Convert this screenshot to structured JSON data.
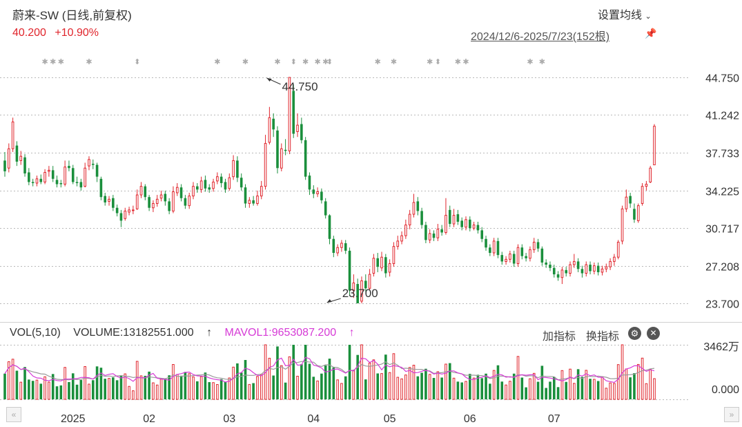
{
  "header": {
    "title": "蔚来-SW (日线,前复权)",
    "price": "40.200",
    "change": "+10.90%",
    "ma_setting": "设置均线",
    "range": "2024/12/6-2025/7/23(152根)"
  },
  "volume_panel": {
    "vol_label": "VOL(5,10)",
    "volume_text": "VOLUME:13182551.000",
    "volume_arrow": "↑",
    "mavol_text": "MAVOL1:9653087.200",
    "mavol_arrow": "↑",
    "add_indicator": "加指标",
    "swap_indicator": "换指标",
    "y_top": "3462万",
    "y_zero": "0.000"
  },
  "icons": {
    "ma_dropdown": "chevron-down-icon",
    "pin": "pin-icon",
    "settings": "gear-icon",
    "close": "close-icon",
    "nav_left": "double-chevron-left-icon",
    "nav_right": "double-chevron-right-icon"
  },
  "colors": {
    "up": "#e0242b",
    "down": "#1a8f3c",
    "mavol1": "#d63ad6",
    "mavol2": "#9a9a9a"
  },
  "chart_data": {
    "type": "candlestick",
    "price_ylim": [
      23.7,
      44.75
    ],
    "price_ticks": [
      "44.750",
      "41.242",
      "37.733",
      "34.225",
      "30.717",
      "27.208",
      "23.700"
    ],
    "x_month_labels": [
      {
        "label": "2025",
        "index": 17
      },
      {
        "label": "02",
        "index": 36
      },
      {
        "label": "03",
        "index": 56
      },
      {
        "label": "04",
        "index": 77
      },
      {
        "label": "05",
        "index": 96
      },
      {
        "label": "06",
        "index": 116
      },
      {
        "label": "07",
        "index": 137
      }
    ],
    "annotations": [
      {
        "label": "44.750",
        "index": 65,
        "value": 44.75
      },
      {
        "label": "23.700",
        "index": 80,
        "value": 23.7
      }
    ],
    "event_markers": [
      {
        "index": 10,
        "symbol": "✱"
      },
      {
        "index": 12,
        "symbol": "✱"
      },
      {
        "index": 14,
        "symbol": "✱"
      },
      {
        "index": 21,
        "symbol": "✱"
      },
      {
        "index": 33,
        "symbol": "⬍"
      },
      {
        "index": 53,
        "symbol": "✱"
      },
      {
        "index": 60,
        "symbol": "✱"
      },
      {
        "index": 68,
        "symbol": "✱"
      },
      {
        "index": 72,
        "symbol": "⬍"
      },
      {
        "index": 75,
        "symbol": "✱"
      },
      {
        "index": 78,
        "symbol": "✱"
      },
      {
        "index": 80,
        "symbol": "✱"
      },
      {
        "index": 81,
        "symbol": "⬍"
      },
      {
        "index": 93,
        "symbol": "✱"
      },
      {
        "index": 97,
        "symbol": "✱"
      },
      {
        "index": 106,
        "symbol": "✱"
      },
      {
        "index": 108,
        "symbol": "⬍"
      },
      {
        "index": 113,
        "symbol": "✱"
      },
      {
        "index": 115,
        "symbol": "✱"
      },
      {
        "index": 131,
        "symbol": "✱"
      },
      {
        "index": 134,
        "symbol": "✱"
      }
    ],
    "candles": [
      [
        37.0,
        36.0,
        37.8,
        35.5
      ],
      [
        36.3,
        38.1,
        38.6,
        35.9
      ],
      [
        38.1,
        40.6,
        41.0,
        37.8
      ],
      [
        38.4,
        36.9,
        38.8,
        36.5
      ],
      [
        37.0,
        37.4,
        37.9,
        36.6
      ],
      [
        37.3,
        35.8,
        37.6,
        35.5
      ],
      [
        35.9,
        35.0,
        36.3,
        34.7
      ],
      [
        35.0,
        34.9,
        35.3,
        34.6
      ],
      [
        34.9,
        35.3,
        35.6,
        34.6
      ],
      [
        35.3,
        35.0,
        35.7,
        34.8
      ],
      [
        35.0,
        35.9,
        36.2,
        34.8
      ],
      [
        36.0,
        36.1,
        36.5,
        35.5
      ],
      [
        36.1,
        35.3,
        36.5,
        35.0
      ],
      [
        35.2,
        34.8,
        35.6,
        34.5
      ],
      [
        34.9,
        34.8,
        35.2,
        34.5
      ],
      [
        34.8,
        36.4,
        37.0,
        34.6
      ],
      [
        36.5,
        36.3,
        37.0,
        36.0
      ],
      [
        36.3,
        35.0,
        36.6,
        34.8
      ],
      [
        35.0,
        34.9,
        35.5,
        34.6
      ],
      [
        35.0,
        34.5,
        35.3,
        34.2
      ],
      [
        34.6,
        36.3,
        36.8,
        34.5
      ],
      [
        36.5,
        37.1,
        37.4,
        36.1
      ],
      [
        36.7,
        36.6,
        37.1,
        36.2
      ],
      [
        36.6,
        35.5,
        36.8,
        35.0
      ],
      [
        35.3,
        33.6,
        35.5,
        33.3
      ],
      [
        33.7,
        33.1,
        34.0,
        32.8
      ],
      [
        33.2,
        33.4,
        33.7,
        32.8
      ],
      [
        33.5,
        32.6,
        33.8,
        32.3
      ],
      [
        32.6,
        32.1,
        32.9,
        31.8
      ],
      [
        32.1,
        31.4,
        32.4,
        30.8
      ],
      [
        31.6,
        32.3,
        32.6,
        31.4
      ],
      [
        32.2,
        32.4,
        32.7,
        31.9
      ],
      [
        32.4,
        32.4,
        32.8,
        32.0
      ],
      [
        32.5,
        33.8,
        34.3,
        32.4
      ],
      [
        33.8,
        34.6,
        35.0,
        33.5
      ],
      [
        34.6,
        33.6,
        34.8,
        33.3
      ],
      [
        33.6,
        32.6,
        33.8,
        32.3
      ],
      [
        32.6,
        33.0,
        33.3,
        32.2
      ],
      [
        33.0,
        33.4,
        33.8,
        32.7
      ],
      [
        33.5,
        33.8,
        34.2,
        33.2
      ],
      [
        33.9,
        33.2,
        34.2,
        32.8
      ],
      [
        33.2,
        32.3,
        33.5,
        32.0
      ],
      [
        32.3,
        34.1,
        34.6,
        32.1
      ],
      [
        34.0,
        34.5,
        34.9,
        33.7
      ],
      [
        34.5,
        33.5,
        34.8,
        33.2
      ],
      [
        33.5,
        32.8,
        33.8,
        32.5
      ],
      [
        32.8,
        33.7,
        34.0,
        32.5
      ],
      [
        33.7,
        34.6,
        35.0,
        33.4
      ],
      [
        34.6,
        34.3,
        34.9,
        34.0
      ],
      [
        34.3,
        35.1,
        35.5,
        34.0
      ],
      [
        35.2,
        34.4,
        35.6,
        34.1
      ],
      [
        34.5,
        34.3,
        34.8,
        34.0
      ],
      [
        34.4,
        35.0,
        35.3,
        34.1
      ],
      [
        35.1,
        35.5,
        35.9,
        34.8
      ],
      [
        35.5,
        34.9,
        35.8,
        34.5
      ],
      [
        35.0,
        34.3,
        35.3,
        34.0
      ],
      [
        34.4,
        35.4,
        35.8,
        34.2
      ],
      [
        35.5,
        37.0,
        37.5,
        35.2
      ],
      [
        37.0,
        35.4,
        37.4,
        35.0
      ],
      [
        35.4,
        34.5,
        35.8,
        34.2
      ],
      [
        34.5,
        33.0,
        34.8,
        32.6
      ],
      [
        33.0,
        33.3,
        33.6,
        32.6
      ],
      [
        33.3,
        33.0,
        33.7,
        32.8
      ],
      [
        33.0,
        33.7,
        34.2,
        32.8
      ],
      [
        33.7,
        34.6,
        35.1,
        33.4
      ],
      [
        34.6,
        38.6,
        39.4,
        34.3
      ],
      [
        38.7,
        41.0,
        42.0,
        38.5
      ],
      [
        40.9,
        39.9,
        41.4,
        39.2
      ],
      [
        39.8,
        36.3,
        40.2,
        35.8
      ],
      [
        36.3,
        38.1,
        38.6,
        36.0
      ],
      [
        38.0,
        37.9,
        39.0,
        37.5
      ],
      [
        37.9,
        44.75,
        44.75,
        37.6
      ],
      [
        43.5,
        39.5,
        44.1,
        39.1
      ],
      [
        39.7,
        40.3,
        41.4,
        39.2
      ],
      [
        40.4,
        38.9,
        41.0,
        38.6
      ],
      [
        38.9,
        35.5,
        39.2,
        35.2
      ],
      [
        35.6,
        34.3,
        35.9,
        33.8
      ],
      [
        34.3,
        33.9,
        34.7,
        33.5
      ],
      [
        33.9,
        34.1,
        34.5,
        33.6
      ],
      [
        34.1,
        33.3,
        34.4,
        33.0
      ],
      [
        33.2,
        31.9,
        33.5,
        31.6
      ],
      [
        31.9,
        29.7,
        32.0,
        29.2
      ],
      [
        29.7,
        28.4,
        30.0,
        28.0
      ],
      [
        28.4,
        28.9,
        29.2,
        28.1
      ],
      [
        28.9,
        29.3,
        29.6,
        28.5
      ],
      [
        29.3,
        28.6,
        29.6,
        28.3
      ],
      [
        28.6,
        24.9,
        28.9,
        24.4
      ],
      [
        24.9,
        25.6,
        26.4,
        24.2
      ],
      [
        25.5,
        23.7,
        26.0,
        23.7
      ],
      [
        23.9,
        25.8,
        26.2,
        23.7
      ],
      [
        25.8,
        25.1,
        26.4,
        24.8
      ],
      [
        25.1,
        26.4,
        26.9,
        24.9
      ],
      [
        26.5,
        27.9,
        28.3,
        26.2
      ],
      [
        27.9,
        27.1,
        28.4,
        26.6
      ],
      [
        27.0,
        28.0,
        28.5,
        26.7
      ],
      [
        28.0,
        26.5,
        28.3,
        26.1
      ],
      [
        26.6,
        27.4,
        27.8,
        26.2
      ],
      [
        27.4,
        29.0,
        29.4,
        27.1
      ],
      [
        29.0,
        29.5,
        30.0,
        28.7
      ],
      [
        29.5,
        30.0,
        30.4,
        29.2
      ],
      [
        30.0,
        31.0,
        31.5,
        29.7
      ],
      [
        31.0,
        32.0,
        32.4,
        30.6
      ],
      [
        32.0,
        33.1,
        33.9,
        31.7
      ],
      [
        33.2,
        32.3,
        33.6,
        31.9
      ],
      [
        32.3,
        31.0,
        32.6,
        30.7
      ],
      [
        31.0,
        29.6,
        31.3,
        29.3
      ],
      [
        29.6,
        30.2,
        30.6,
        29.3
      ],
      [
        30.2,
        29.8,
        30.5,
        29.5
      ],
      [
        29.8,
        30.6,
        31.1,
        29.5
      ],
      [
        30.6,
        30.3,
        31.0,
        30.0
      ],
      [
        30.3,
        31.9,
        33.5,
        30.1
      ],
      [
        32.4,
        31.1,
        32.8,
        30.8
      ],
      [
        31.1,
        31.9,
        32.5,
        30.8
      ],
      [
        32.0,
        31.3,
        32.4,
        31.0
      ],
      [
        31.4,
        30.8,
        31.7,
        30.5
      ],
      [
        30.8,
        31.5,
        31.8,
        30.5
      ],
      [
        31.5,
        30.7,
        31.8,
        30.4
      ],
      [
        30.7,
        31.0,
        31.3,
        30.5
      ],
      [
        31.0,
        30.5,
        31.3,
        30.2
      ],
      [
        30.5,
        29.7,
        30.8,
        29.4
      ],
      [
        29.7,
        28.9,
        30.0,
        28.6
      ],
      [
        28.9,
        28.4,
        29.2,
        28.1
      ],
      [
        28.4,
        29.5,
        29.8,
        28.1
      ],
      [
        29.5,
        28.2,
        29.8,
        27.9
      ],
      [
        28.2,
        27.6,
        28.5,
        27.3
      ],
      [
        27.6,
        27.8,
        28.1,
        27.3
      ],
      [
        27.8,
        28.3,
        28.6,
        27.5
      ],
      [
        28.3,
        27.4,
        28.6,
        27.1
      ],
      [
        27.4,
        28.9,
        29.2,
        27.1
      ],
      [
        28.9,
        28.1,
        29.2,
        27.8
      ],
      [
        28.1,
        27.9,
        28.4,
        27.6
      ],
      [
        27.9,
        28.7,
        29.0,
        27.6
      ],
      [
        28.7,
        29.4,
        29.8,
        28.4
      ],
      [
        29.4,
        28.8,
        29.7,
        28.5
      ],
      [
        28.8,
        27.5,
        29.0,
        27.2
      ],
      [
        27.5,
        27.3,
        27.8,
        27.0
      ],
      [
        27.3,
        27.0,
        27.6,
        26.7
      ],
      [
        27.0,
        26.4,
        27.3,
        26.1
      ],
      [
        26.4,
        26.1,
        26.7,
        25.8
      ],
      [
        26.1,
        26.8,
        27.1,
        25.5
      ],
      [
        26.8,
        26.5,
        27.1,
        26.2
      ],
      [
        26.5,
        27.3,
        27.6,
        26.2
      ],
      [
        27.3,
        27.6,
        28.3,
        27.0
      ],
      [
        27.6,
        26.9,
        27.9,
        26.6
      ],
      [
        26.9,
        26.5,
        27.2,
        26.1
      ],
      [
        26.5,
        27.3,
        27.6,
        26.2
      ],
      [
        27.3,
        26.7,
        27.6,
        26.4
      ]
    ],
    "tail_candles": [
      [
        26.7,
        27.2,
        27.5,
        26.4
      ],
      [
        27.2,
        26.6,
        27.5,
        26.3
      ],
      [
        26.6,
        26.9,
        27.2,
        26.3
      ],
      [
        26.9,
        27.1,
        27.4,
        26.6
      ],
      [
        27.1,
        27.6,
        27.9,
        26.8
      ],
      [
        27.6,
        28.0,
        28.3,
        27.2
      ],
      [
        28.0,
        29.4,
        29.6,
        27.8
      ],
      [
        29.5,
        32.5,
        32.8,
        29.2
      ],
      [
        32.5,
        33.6,
        34.3,
        32.2
      ],
      [
        33.7,
        33.0,
        34.0,
        32.6
      ],
      [
        32.5,
        31.5,
        33.0,
        31.2
      ],
      [
        31.4,
        32.8,
        33.0,
        31.2
      ],
      [
        33.0,
        34.6,
        34.9,
        32.8
      ],
      [
        34.6,
        34.8,
        35.1,
        34.2
      ],
      [
        35.0,
        36.3,
        36.5,
        34.9
      ],
      [
        36.6,
        40.2,
        40.4,
        39.3
      ]
    ],
    "volume_ylim": [
      0,
      3462
    ],
    "volume_unit": "万"
  }
}
